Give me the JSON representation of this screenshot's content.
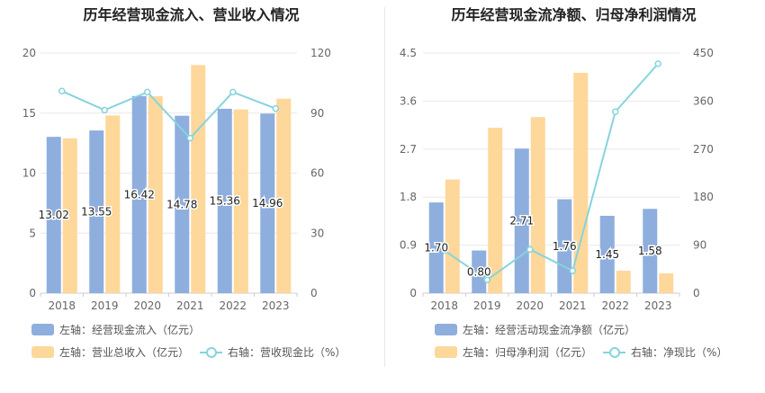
{
  "colors": {
    "bar1": "#8eaede",
    "bar2": "#fed79a",
    "line": "#86d4dc",
    "grid": "#e8e8e8",
    "axis_text": "#666666"
  },
  "chart_data": [
    {
      "type": "bar",
      "title": "历年经营现金流入、营业收入情况",
      "categories": [
        "2018",
        "2019",
        "2020",
        "2021",
        "2022",
        "2023"
      ],
      "ylim_left": [
        0,
        20
      ],
      "ylim_right": [
        0,
        120
      ],
      "left_ticks": [
        "0",
        "5",
        "10",
        "15",
        "20"
      ],
      "right_ticks": [
        "0",
        "30",
        "60",
        "90",
        "120"
      ],
      "series": [
        {
          "name": "左轴：经营现金流入（亿元）",
          "axis": "left",
          "kind": "bar",
          "values": [
            13.02,
            13.55,
            16.42,
            14.78,
            15.36,
            14.96
          ],
          "labels": [
            "13.02",
            "13.55",
            "16.42",
            "14.78",
            "15.36",
            "14.96"
          ]
        },
        {
          "name": "左轴：营业总收入（亿元）",
          "axis": "left",
          "kind": "bar",
          "values": [
            12.9,
            14.8,
            16.4,
            19.0,
            15.3,
            16.2
          ]
        },
        {
          "name": "右轴：营收现金比（%）",
          "axis": "right",
          "kind": "line",
          "values": [
            101,
            91.5,
            100.5,
            77.5,
            100.5,
            92.3
          ]
        }
      ]
    },
    {
      "type": "bar",
      "title": "历年经营现金流净额、归母净利润情况",
      "categories": [
        "2018",
        "2019",
        "2020",
        "2021",
        "2022",
        "2023"
      ],
      "ylim_left": [
        0,
        4.5
      ],
      "ylim_right": [
        0,
        450
      ],
      "left_ticks": [
        "0",
        "0.9",
        "1.8",
        "2.7",
        "3.6",
        "4.5"
      ],
      "right_ticks": [
        "0",
        "90",
        "180",
        "270",
        "360",
        "450"
      ],
      "series": [
        {
          "name": "左轴：经营活动现金流净额（亿元）",
          "axis": "left",
          "kind": "bar",
          "values": [
            1.7,
            0.8,
            2.71,
            1.76,
            1.45,
            1.58
          ],
          "labels": [
            "1.70",
            "0.80",
            "2.71",
            "1.76",
            "1.45",
            "1.58"
          ]
        },
        {
          "name": "左轴：归母净利润（亿元）",
          "axis": "left",
          "kind": "bar",
          "values": [
            2.13,
            3.1,
            3.3,
            4.13,
            0.42,
            0.37
          ]
        },
        {
          "name": "右轴：净现比（%）",
          "axis": "right",
          "kind": "line",
          "values": [
            80,
            25,
            82,
            42,
            340,
            430
          ]
        }
      ]
    }
  ]
}
